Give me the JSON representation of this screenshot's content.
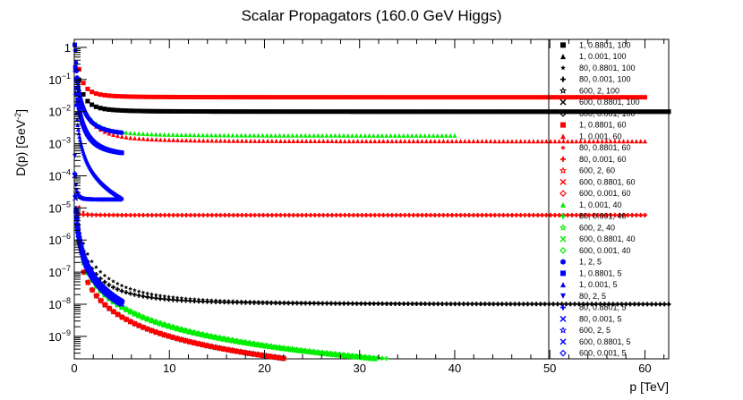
{
  "chart_data": {
    "type": "scatter",
    "title": "Scalar Propagators (160.0 GeV Higgs)",
    "xlabel": "p [TeV]",
    "ylabel": "D(p) [GeV",
    "ylabel_sup": "-2",
    "ylabel_close": "]",
    "xlim": [
      0,
      62.5
    ],
    "ylim_log10": [
      -9.7,
      0.25
    ],
    "yscale": "log",
    "x_ticks": [
      0,
      10,
      20,
      30,
      40,
      50,
      60
    ],
    "x_tick_labels": [
      "0",
      "10",
      "20",
      "30",
      "40",
      "50",
      "60"
    ],
    "y_ticks": [
      {
        "exp": 0,
        "base": "1",
        "sup": ""
      },
      {
        "exp": -1,
        "base": "10",
        "sup": "−1"
      },
      {
        "exp": -2,
        "base": "10",
        "sup": "−2"
      },
      {
        "exp": -3,
        "base": "10",
        "sup": "−3"
      },
      {
        "exp": -4,
        "base": "10",
        "sup": "−4"
      },
      {
        "exp": -5,
        "base": "10",
        "sup": "−5"
      },
      {
        "exp": -6,
        "base": "10",
        "sup": "−6"
      },
      {
        "exp": -7,
        "base": "10",
        "sup": "−7"
      },
      {
        "exp": -8,
        "base": "10",
        "sup": "−8"
      },
      {
        "exp": -9,
        "base": "10",
        "sup": "−9"
      }
    ],
    "legend_location": "right",
    "series": [
      {
        "name": "1, 0.8801, 100",
        "color": "#000000",
        "marker": "square",
        "xmax": 100,
        "a": 0.022,
        "b": 0.01,
        "pmin": 0.5
      },
      {
        "name": "1, 0.001, 100",
        "color": "#000000",
        "marker": "triangle-up",
        "xmax": 100,
        "a": 0.022,
        "b": 0.01,
        "pmin": 0.5
      },
      {
        "name": "80, 0.8801, 100",
        "color": "#000000",
        "marker": "star",
        "xmax": 100,
        "a": 7e-07,
        "b": 1e-08,
        "pmin": 0.5
      },
      {
        "name": "80, 0.001, 100",
        "color": "#000000",
        "marker": "plus",
        "xmax": 100,
        "a": 4e-07,
        "b": 1e-08,
        "pmin": 0.5
      },
      {
        "name": "600, 2, 100",
        "color": "#000000",
        "marker": "star-open",
        "xmax": 100,
        "a": 1e-07,
        "b": 0,
        "pmin": 1.0
      },
      {
        "name": "600, 0.8801, 100",
        "color": "#000000",
        "marker": "cross",
        "xmax": 100,
        "a": 1e-07,
        "b": 0,
        "pmin": 1.0
      },
      {
        "name": "600, 0.001, 100",
        "color": "#000000",
        "marker": "diamond-open",
        "xmax": 100,
        "a": 1e-07,
        "b": 0,
        "pmin": 1.0
      },
      {
        "name": "1, 0.8801, 60",
        "color": "#ff0000",
        "marker": "square",
        "xmax": 60,
        "a": 0.045,
        "b": 0.028,
        "pmin": 0.5
      },
      {
        "name": "1, 0.001, 60",
        "color": "#ff0000",
        "marker": "triangle-up",
        "xmax": 60,
        "a": 0.012,
        "b": 0.0012,
        "pmin": 0.5
      },
      {
        "name": "80, 0.8801, 60",
        "color": "#ff0000",
        "marker": "star",
        "xmax": 60,
        "a": 1.2e-06,
        "b": 6e-06,
        "pmin": 0.5
      },
      {
        "name": "80, 0.001, 60",
        "color": "#ff0000",
        "marker": "plus",
        "xmax": 60,
        "a": 1e-07,
        "b": 6e-06,
        "pmin": 0.5
      },
      {
        "name": "600, 2, 60",
        "color": "#ff0000",
        "marker": "star-open",
        "xmax": 60,
        "a": 1e-07,
        "b": 0,
        "pmin": 1.0
      },
      {
        "name": "600, 0.8801, 60",
        "color": "#ff0000",
        "marker": "cross",
        "xmax": 60,
        "a": 1e-07,
        "b": 0,
        "pmin": 1.0
      },
      {
        "name": "600, 0.001, 60",
        "color": "#ff0000",
        "marker": "diamond-open",
        "xmax": 60,
        "a": 1e-07,
        "b": 0,
        "pmin": 1.0
      },
      {
        "name": "1, 0.001, 40",
        "color": "#00ee00",
        "marker": "triangle-up",
        "xmax": 40,
        "a": 0.013,
        "b": 0.0018,
        "pmin": 0.5
      },
      {
        "name": "80, 0.001, 40",
        "color": "#00ee00",
        "marker": "plus",
        "xmax": 40,
        "a": 2.2e-07,
        "b": 0,
        "pmin": 0.5
      },
      {
        "name": "600, 2, 40",
        "color": "#00ee00",
        "marker": "star-open",
        "xmax": 40,
        "a": 2e-07,
        "b": 0,
        "pmin": 1.0
      },
      {
        "name": "600, 0.8801, 40",
        "color": "#00ee00",
        "marker": "cross",
        "xmax": 40,
        "a": 2e-07,
        "b": 0,
        "pmin": 1.0
      },
      {
        "name": "600, 0.001, 40",
        "color": "#00ee00",
        "marker": "diamond-open",
        "xmax": 40,
        "a": 2e-07,
        "b": 0,
        "pmin": 1.0
      },
      {
        "name": "1, 2, 5",
        "color": "#0000ff",
        "marker": "circle",
        "xmax": 5,
        "a": 0.01,
        "b": 0.0018,
        "pmin": 0.05
      },
      {
        "name": "1, 0.8801, 5",
        "color": "#0000ff",
        "marker": "square",
        "xmax": 5,
        "a": 0.003,
        "b": 0.0004,
        "pmin": 0.05
      },
      {
        "name": "1, 0.001, 5",
        "color": "#0000ff",
        "marker": "triangle-up",
        "xmax": 5,
        "a": 0.0005,
        "b": 0,
        "pmin": 0.05
      },
      {
        "name": "80, 2, 5",
        "color": "#0000ff",
        "marker": "triangle-down",
        "xmax": 5,
        "a": 1e-06,
        "b": 1.8e-05,
        "pmin": 0.05
      },
      {
        "name": "80, 0.8801, 5",
        "color": "#0000ff",
        "marker": "plus",
        "xmax": 5,
        "a": 3e-07,
        "b": 0,
        "pmin": 0.05
      },
      {
        "name": "80, 0.001, 5",
        "color": "#0000ff",
        "marker": "cross",
        "xmax": 5,
        "a": 2.5e-07,
        "b": 0,
        "pmin": 0.05
      },
      {
        "name": "600, 2, 5",
        "color": "#0000ff",
        "marker": "star-open",
        "xmax": 5,
        "a": 3e-07,
        "b": 0,
        "pmin": 0.2
      },
      {
        "name": "600, 0.8801, 5",
        "color": "#0000ff",
        "marker": "x-open",
        "xmax": 5,
        "a": 3e-07,
        "b": 0,
        "pmin": 0.2
      },
      {
        "name": "600, 0.001, 5",
        "color": "#0000ff",
        "marker": "diamond-open",
        "xmax": 5,
        "a": 3e-07,
        "b": 0,
        "pmin": 0.2
      }
    ]
  }
}
